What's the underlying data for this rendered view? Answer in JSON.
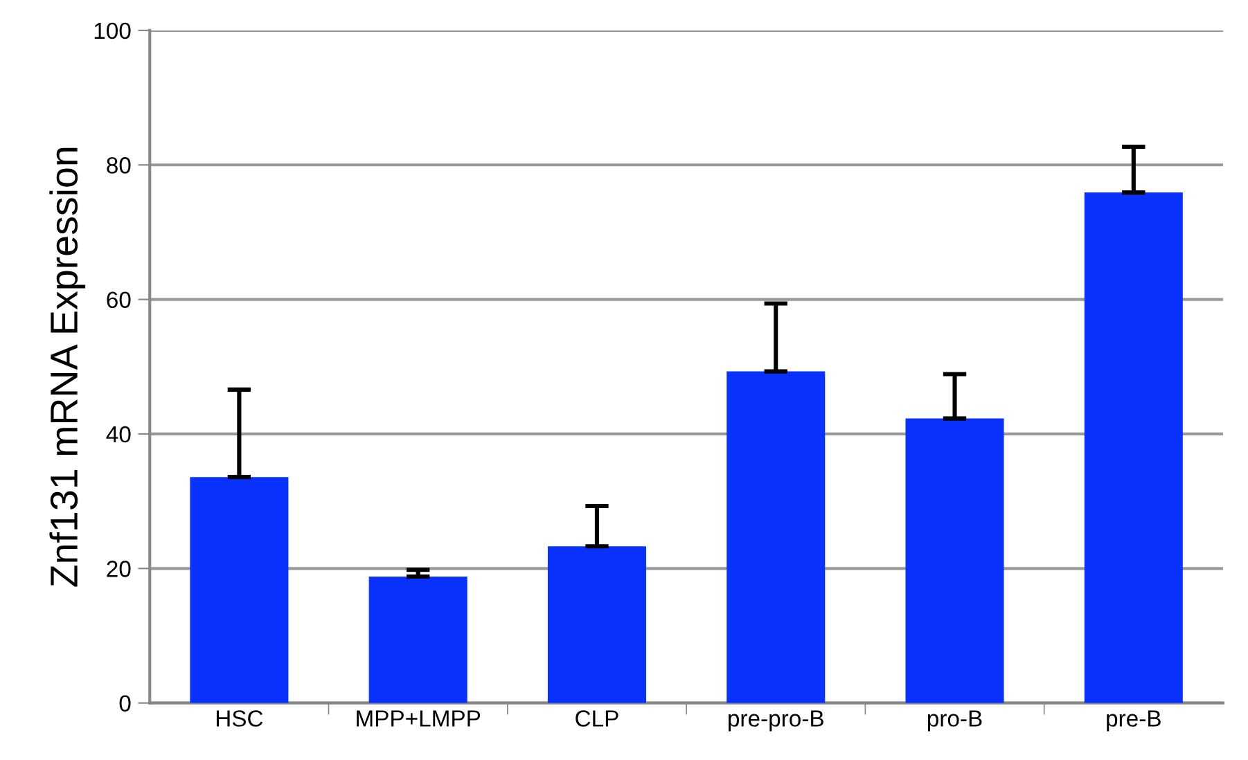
{
  "chart_data": {
    "type": "bar",
    "ylabel": "Znf131 mRNA Expression",
    "categories": [
      "HSC",
      "MPP+LMPP",
      "CLP",
      "pre-pro-B",
      "pro-B",
      "pre-B"
    ],
    "values": [
      33.6,
      18.8,
      23.3,
      49.3,
      42.3,
      75.9
    ],
    "errors": [
      [
        33.6,
        46.6
      ],
      [
        18.8,
        19.8
      ],
      [
        23.3,
        29.3
      ],
      [
        49.3,
        59.4
      ],
      [
        42.3,
        48.9
      ],
      [
        75.9,
        82.7
      ]
    ],
    "color": "#0a32ff",
    "ylim": [
      0,
      100
    ],
    "yticks": [
      0,
      20,
      40,
      60,
      80,
      100
    ],
    "grid": "y"
  }
}
